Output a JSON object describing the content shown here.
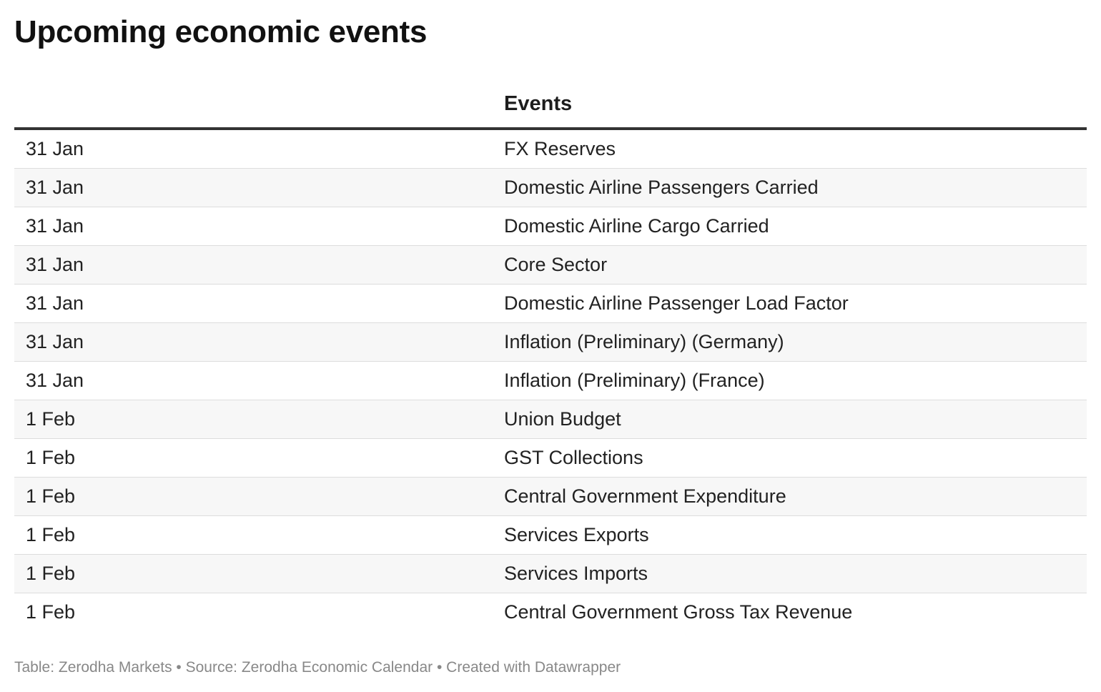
{
  "title": "Upcoming economic events",
  "chart_data": {
    "type": "table",
    "title": "Upcoming economic events",
    "columns": [
      "",
      "Events"
    ],
    "rows": [
      [
        "31 Jan",
        "FX Reserves"
      ],
      [
        "31 Jan",
        "Domestic Airline Passengers Carried"
      ],
      [
        "31 Jan",
        "Domestic Airline Cargo Carried"
      ],
      [
        "31 Jan",
        "Core Sector"
      ],
      [
        "31 Jan",
        "Domestic Airline Passenger Load Factor"
      ],
      [
        "31 Jan",
        "Inflation (Preliminary) (Germany)"
      ],
      [
        "31 Jan",
        "Inflation (Preliminary) (France)"
      ],
      [
        "1 Feb",
        "Union Budget"
      ],
      [
        "1 Feb",
        "GST Collections"
      ],
      [
        "1 Feb",
        "Central Government Expenditure"
      ],
      [
        "1 Feb",
        "Services Exports"
      ],
      [
        "1 Feb",
        "Services Imports"
      ],
      [
        "1 Feb",
        "Central Government Gross Tax Revenue"
      ]
    ],
    "footer": "Table: Zerodha Markets • Source: Zerodha Economic Calendar • Created with Datawrapper"
  },
  "colors": {
    "header_rule": "#333333",
    "row_alt": "#f7f7f7",
    "row_divider": "#dddddd",
    "footer_text": "#888888"
  }
}
